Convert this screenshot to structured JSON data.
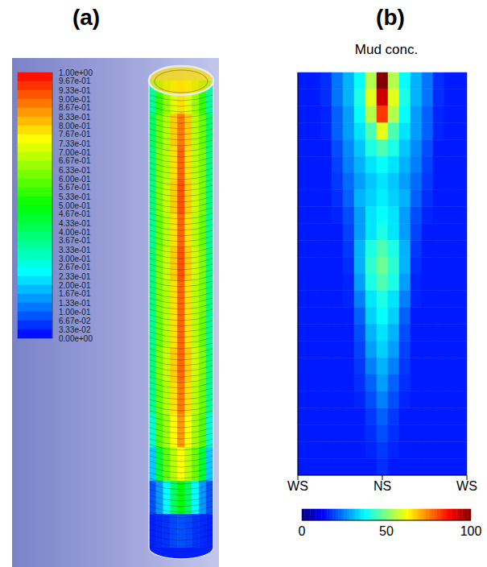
{
  "chart_data": [
    {
      "type": "contour",
      "title": "(a)",
      "tick_labels": false,
      "cells": [
        [
          0.35,
          0.55,
          0.65,
          0.72,
          0.78,
          0.72,
          0.65,
          0.55,
          0.35
        ],
        [
          0.4,
          0.6,
          0.68,
          0.8,
          0.88,
          0.8,
          0.68,
          0.6,
          0.4
        ],
        [
          0.38,
          0.62,
          0.68,
          0.78,
          0.9,
          0.78,
          0.68,
          0.62,
          0.38
        ],
        [
          0.38,
          0.62,
          0.7,
          0.8,
          0.92,
          0.8,
          0.7,
          0.62,
          0.38
        ],
        [
          0.36,
          0.6,
          0.68,
          0.78,
          0.9,
          0.78,
          0.68,
          0.6,
          0.36
        ],
        [
          0.38,
          0.62,
          0.7,
          0.8,
          0.92,
          0.8,
          0.7,
          0.62,
          0.38
        ],
        [
          0.38,
          0.62,
          0.68,
          0.78,
          0.9,
          0.78,
          0.68,
          0.62,
          0.38
        ],
        [
          0.36,
          0.6,
          0.68,
          0.78,
          0.9,
          0.78,
          0.68,
          0.6,
          0.36
        ],
        [
          0.38,
          0.62,
          0.7,
          0.8,
          0.9,
          0.8,
          0.7,
          0.62,
          0.38
        ],
        [
          0.36,
          0.6,
          0.68,
          0.78,
          0.88,
          0.78,
          0.68,
          0.6,
          0.36
        ],
        [
          0.3,
          0.58,
          0.66,
          0.75,
          0.85,
          0.75,
          0.66,
          0.58,
          0.3
        ],
        [
          0.2,
          0.45,
          0.6,
          0.68,
          0.75,
          0.68,
          0.6,
          0.45,
          0.2
        ],
        [
          0.08,
          0.15,
          0.25,
          0.4,
          0.5,
          0.4,
          0.25,
          0.15,
          0.08
        ],
        [
          0.03,
          0.04,
          0.05,
          0.07,
          0.08,
          0.07,
          0.05,
          0.04,
          0.03
        ]
      ],
      "colorbar": {
        "range": [
          0,
          1
        ],
        "ticks": [
          {
            "value": 1,
            "label": "1.00e+00"
          },
          {
            "value": 0.967,
            "label": "9.67e-01"
          },
          {
            "value": 0.933,
            "label": "9.33e-01"
          },
          {
            "value": 0.9,
            "label": "9.00e-01"
          },
          {
            "value": 0.867,
            "label": "8.67e-01"
          },
          {
            "value": 0.833,
            "label": "8.33e-01"
          },
          {
            "value": 0.8,
            "label": "8.00e-01"
          },
          {
            "value": 0.767,
            "label": "7.67e-01"
          },
          {
            "value": 0.733,
            "label": "7.33e-01"
          },
          {
            "value": 0.7,
            "label": "7.00e-01"
          },
          {
            "value": 0.667,
            "label": "6.67e-01"
          },
          {
            "value": 0.633,
            "label": "6.33e-01"
          },
          {
            "value": 0.6,
            "label": "6.00e-01"
          },
          {
            "value": 0.567,
            "label": "5.67e-01"
          },
          {
            "value": 0.533,
            "label": "5.33e-01"
          },
          {
            "value": 0.5,
            "label": "5.00e-01"
          },
          {
            "value": 0.467,
            "label": "4.67e-01"
          },
          {
            "value": 0.433,
            "label": "4.33e-01"
          },
          {
            "value": 0.4,
            "label": "4.00e-01"
          },
          {
            "value": 0.367,
            "label": "3.67e-01"
          },
          {
            "value": 0.333,
            "label": "3.33e-01"
          },
          {
            "value": 0.3,
            "label": "3.00e-01"
          },
          {
            "value": 0.267,
            "label": "2.67e-01"
          },
          {
            "value": 0.233,
            "label": "2.33e-01"
          },
          {
            "value": 0.2,
            "label": "2.00e-01"
          },
          {
            "value": 0.167,
            "label": "1.67e-01"
          },
          {
            "value": 0.133,
            "label": "1.33e-01"
          },
          {
            "value": 0.1,
            "label": "1.00e-01"
          },
          {
            "value": 0.0667,
            "label": "6.67e-02"
          },
          {
            "value": 0.0333,
            "label": "3.33e-02"
          },
          {
            "value": 0,
            "label": "0.00e+00"
          }
        ]
      }
    },
    {
      "type": "heatmap",
      "title": "(b)",
      "subtitle": "Mud conc.",
      "tick_labels": "x",
      "xlim": [
        0,
        15
      ],
      "xticks": [
        {
          "value": 0,
          "label": "WS"
        },
        {
          "value": 7.5,
          "label": "NS"
        },
        {
          "value": 15,
          "label": "WS"
        }
      ],
      "ylim": [
        0,
        24
      ],
      "yticks": [
        0,
        4,
        8,
        12,
        16,
        20,
        24
      ],
      "cells": [
        [
          15,
          15,
          17,
          24,
          30,
          38,
          55,
          100,
          55,
          38,
          30,
          24,
          17,
          15,
          15
        ],
        [
          15,
          15,
          17,
          24,
          30,
          40,
          60,
          92,
          60,
          40,
          30,
          24,
          17,
          15,
          15
        ],
        [
          15,
          15,
          16,
          22,
          28,
          38,
          55,
          82,
          55,
          38,
          28,
          22,
          16,
          15,
          15
        ],
        [
          15,
          15,
          16,
          22,
          28,
          35,
          45,
          60,
          45,
          35,
          28,
          22,
          16,
          15,
          15
        ],
        [
          15,
          15,
          15,
          20,
          26,
          32,
          40,
          45,
          40,
          32,
          26,
          20,
          15,
          15,
          15
        ],
        [
          15,
          15,
          15,
          19,
          25,
          30,
          35,
          38,
          35,
          30,
          25,
          19,
          15,
          15,
          15
        ],
        [
          15,
          15,
          15,
          18,
          23,
          28,
          32,
          35,
          32,
          28,
          23,
          18,
          15,
          15,
          15
        ],
        [
          15,
          15,
          15,
          17,
          22,
          30,
          33,
          36,
          33,
          30,
          22,
          17,
          15,
          15,
          15
        ],
        [
          15,
          15,
          15,
          16,
          20,
          28,
          35,
          38,
          35,
          28,
          20,
          16,
          15,
          15,
          15
        ],
        [
          15,
          15,
          15,
          15,
          19,
          28,
          35,
          40,
          35,
          28,
          19,
          15,
          15,
          15,
          15
        ],
        [
          15,
          15,
          15,
          15,
          18,
          30,
          40,
          45,
          40,
          30,
          18,
          15,
          15,
          15,
          15
        ],
        [
          15,
          15,
          15,
          15,
          17,
          30,
          42,
          48,
          42,
          30,
          17,
          15,
          15,
          15,
          15
        ],
        [
          15,
          15,
          15,
          15,
          16,
          28,
          40,
          45,
          40,
          28,
          16,
          15,
          15,
          15,
          15
        ],
        [
          15,
          15,
          15,
          15,
          16,
          25,
          35,
          40,
          35,
          25,
          16,
          15,
          15,
          15,
          15
        ],
        [
          15,
          15,
          15,
          15,
          15,
          22,
          33,
          38,
          33,
          22,
          15,
          15,
          15,
          15,
          15
        ],
        [
          15,
          15,
          15,
          15,
          15,
          20,
          30,
          35,
          30,
          20,
          15,
          15,
          15,
          15,
          15
        ],
        [
          15,
          15,
          15,
          15,
          15,
          19,
          28,
          33,
          28,
          19,
          15,
          15,
          15,
          15,
          15
        ],
        [
          15,
          15,
          15,
          15,
          15,
          18,
          25,
          30,
          25,
          18,
          15,
          15,
          15,
          15,
          15
        ],
        [
          15,
          15,
          15,
          15,
          15,
          17,
          22,
          28,
          22,
          17,
          15,
          15,
          15,
          15,
          15
        ],
        [
          15,
          15,
          15,
          15,
          15,
          16,
          20,
          25,
          20,
          16,
          15,
          15,
          15,
          15,
          15
        ],
        [
          15,
          15,
          15,
          15,
          15,
          15,
          18,
          22,
          18,
          15,
          15,
          15,
          15,
          15,
          15
        ],
        [
          15,
          15,
          15,
          15,
          15,
          15,
          17,
          20,
          17,
          15,
          15,
          15,
          15,
          15,
          15
        ],
        [
          15,
          15,
          15,
          15,
          15,
          15,
          16,
          18,
          16,
          15,
          15,
          15,
          15,
          15,
          15
        ],
        [
          15,
          15,
          15,
          15,
          15,
          15,
          15,
          17,
          15,
          15,
          15,
          15,
          15,
          15,
          15
        ]
      ],
      "colorbar": {
        "range": [
          0,
          100
        ],
        "ticks": [
          0,
          50,
          100
        ]
      }
    }
  ]
}
